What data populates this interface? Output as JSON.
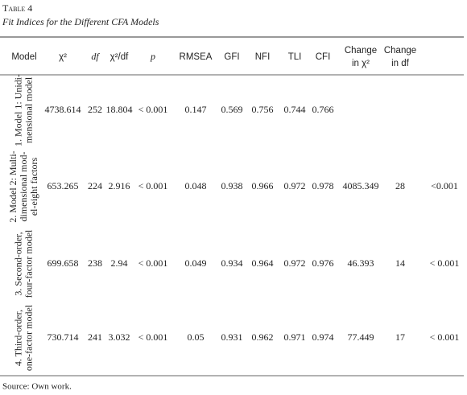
{
  "caption": {
    "label": "Table 4",
    "title": "Fit Indices for the Different CFA Models"
  },
  "table": {
    "headers": [
      "Model",
      "χ²",
      "df",
      "χ²/df",
      "p",
      "RMSEA",
      "GFI",
      "NFI",
      "TLI",
      "CFI",
      [
        "Change",
        "in χ²"
      ],
      [
        "Change",
        "in df"
      ]
    ],
    "rows": [
      {
        "model": [
          "1. Model 1: Unidi-",
          "mensional model"
        ],
        "cells": [
          4738.614,
          252,
          18.804,
          "< 0.001",
          0.147,
          0.569,
          0.756,
          0.744,
          0.766
        ]
      },
      {
        "model": [
          "2. Model 2: Multi-",
          "dimensional mod-",
          "el-eight factors"
        ],
        "cells": [
          653.265,
          224,
          2.916,
          "< 0.001",
          0.048,
          0.938,
          0.966,
          0.972,
          0.978,
          4085.349,
          28,
          "<0.001"
        ]
      },
      {
        "model": [
          "3. Second-order,",
          "four-factor model"
        ],
        "cells": [
          699.658,
          238,
          2.94,
          "< 0.001",
          0.049,
          0.934,
          0.964,
          0.972,
          0.976,
          46.393,
          14,
          "< 0.001"
        ]
      },
      {
        "model": [
          "4. Third-order,",
          "one-factor model"
        ],
        "cells": [
          730.714,
          241,
          3.032,
          "< 0.001",
          0.05,
          0.931,
          0.962,
          0.971,
          0.974,
          77.449,
          17,
          "< 0.001"
        ]
      }
    ]
  },
  "source": "Source: Own work."
}
